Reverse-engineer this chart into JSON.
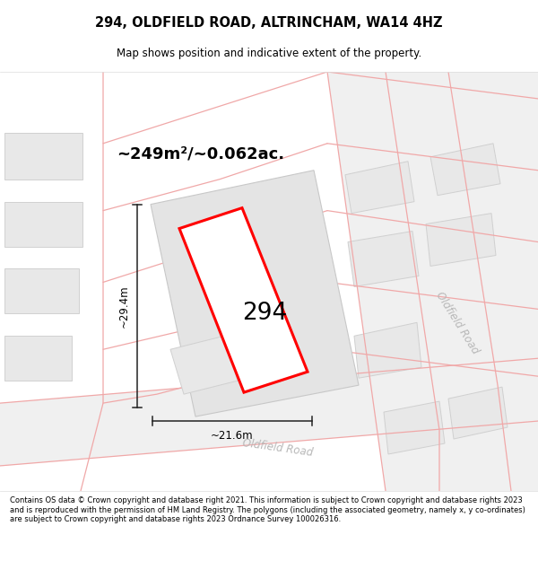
{
  "title": "294, OLDFIELD ROAD, ALTRINCHAM, WA14 4HZ",
  "subtitle": "Map shows position and indicative extent of the property.",
  "footer": "Contains OS data © Crown copyright and database right 2021. This information is subject to Crown copyright and database rights 2023 and is reproduced with the permission of HM Land Registry. The polygons (including the associated geometry, namely x, y co-ordinates) are subject to Crown copyright and database rights 2023 Ordnance Survey 100026316.",
  "area_label": "~249m²/~0.062ac.",
  "number_label": "294",
  "dim_vertical": "~29.4m",
  "dim_horizontal": "~21.6m",
  "road_label_right": "Oldfield Road",
  "road_label_lower": "Oldfield Road",
  "bg_color": "#ffffff",
  "map_bg": "#f8f8f8",
  "plot_color": "#ff0000",
  "road_line_color": "#f0a8a8",
  "building_fill": "#e8e8e8",
  "building_edge": "#d0d0d0",
  "dim_line_color": "#222222",
  "road_text_color": "#b8b8b8"
}
